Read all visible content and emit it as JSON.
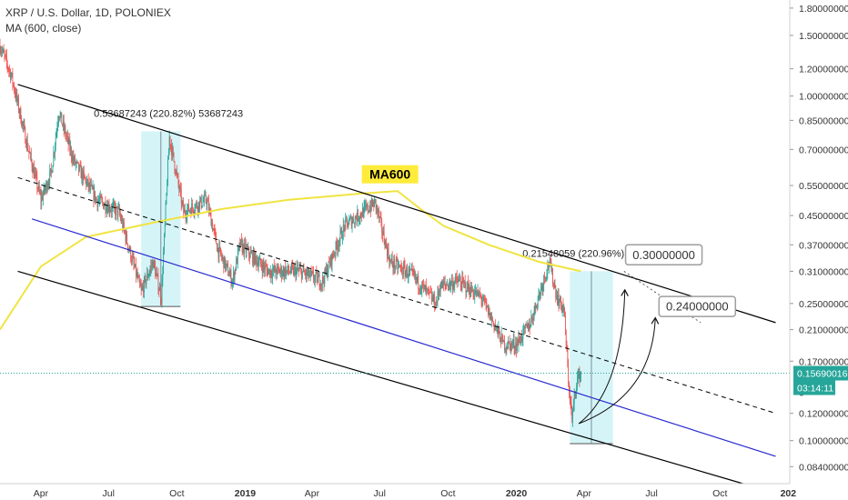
{
  "header": {
    "symbol_title": "XRP / U.S. Dollar, 1D, POLONIEX",
    "indicator_label": "MA (600, close)"
  },
  "chart_data": {
    "type": "candlestick",
    "title": "XRP / U.S. Dollar, 1D, POLONIEX",
    "yscale": "log",
    "ylim": [
      0.075,
      1.9
    ],
    "x_tick_labels": [
      "Apr",
      "Jul",
      "Oct",
      "2019",
      "Apr",
      "Jul",
      "Oct",
      "2020",
      "Apr",
      "Jul",
      "Oct",
      "202"
    ],
    "y_tick_labels": [
      "1.80000000",
      "1.50000000",
      "1.20000000",
      "1.00000000",
      "0.85000000",
      "0.70000000",
      "0.55000000",
      "0.45000000",
      "0.37000000",
      "0.31000000",
      "0.25000000",
      "0.21000000",
      "0.17000000",
      "0.12000000",
      "0.10000000",
      "0.08400000"
    ],
    "price_path": [
      {
        "x": "2018-02-05",
        "y": 1.4
      },
      {
        "x": "2018-02-20",
        "y": 1.15
      },
      {
        "x": "2018-03-15",
        "y": 0.7
      },
      {
        "x": "2018-04-01",
        "y": 0.5
      },
      {
        "x": "2018-04-15",
        "y": 0.6
      },
      {
        "x": "2018-04-25",
        "y": 0.9
      },
      {
        "x": "2018-05-15",
        "y": 0.65
      },
      {
        "x": "2018-06-15",
        "y": 0.5
      },
      {
        "x": "2018-07-15",
        "y": 0.46
      },
      {
        "x": "2018-08-14",
        "y": 0.27
      },
      {
        "x": "2018-08-30",
        "y": 0.33
      },
      {
        "x": "2018-09-10",
        "y": 0.26
      },
      {
        "x": "2018-09-21",
        "y": 0.76
      },
      {
        "x": "2018-10-10",
        "y": 0.46
      },
      {
        "x": "2018-11-10",
        "y": 0.5
      },
      {
        "x": "2018-11-25",
        "y": 0.36
      },
      {
        "x": "2018-12-15",
        "y": 0.29
      },
      {
        "x": "2018-12-25",
        "y": 0.37
      },
      {
        "x": "2019-02-01",
        "y": 0.31
      },
      {
        "x": "2019-03-15",
        "y": 0.31
      },
      {
        "x": "2019-04-15",
        "y": 0.29
      },
      {
        "x": "2019-05-15",
        "y": 0.42
      },
      {
        "x": "2019-06-25",
        "y": 0.49
      },
      {
        "x": "2019-07-15",
        "y": 0.33
      },
      {
        "x": "2019-08-15",
        "y": 0.3
      },
      {
        "x": "2019-09-15",
        "y": 0.25
      },
      {
        "x": "2019-09-20",
        "y": 0.28
      },
      {
        "x": "2019-10-15",
        "y": 0.29
      },
      {
        "x": "2019-11-15",
        "y": 0.26
      },
      {
        "x": "2019-12-15",
        "y": 0.19
      },
      {
        "x": "2020-01-01",
        "y": 0.19
      },
      {
        "x": "2020-01-20",
        "y": 0.22
      },
      {
        "x": "2020-02-14",
        "y": 0.33
      },
      {
        "x": "2020-02-25",
        "y": 0.26
      },
      {
        "x": "2020-03-05",
        "y": 0.24
      },
      {
        "x": "2020-03-12",
        "y": 0.14
      },
      {
        "x": "2020-03-16",
        "y": 0.115
      },
      {
        "x": "2020-03-22",
        "y": 0.15
      },
      {
        "x": "2020-03-28",
        "y": 0.157
      }
    ],
    "ma600": [
      {
        "x": "2018-02-05",
        "y": 0.21
      },
      {
        "x": "2018-04-01",
        "y": 0.32
      },
      {
        "x": "2018-06-01",
        "y": 0.39
      },
      {
        "x": "2018-09-01",
        "y": 0.43
      },
      {
        "x": "2018-12-01",
        "y": 0.47
      },
      {
        "x": "2019-03-01",
        "y": 0.5
      },
      {
        "x": "2019-06-01",
        "y": 0.52
      },
      {
        "x": "2019-07-25",
        "y": 0.53
      },
      {
        "x": "2019-08-25",
        "y": 0.47
      },
      {
        "x": "2019-09-25",
        "y": 0.42
      },
      {
        "x": "2019-11-25",
        "y": 0.37
      },
      {
        "x": "2020-02-01",
        "y": 0.33
      },
      {
        "x": "2020-03-28",
        "y": 0.31
      }
    ],
    "channel_upper": [
      {
        "x": "2018-03-01",
        "y": 1.08
      },
      {
        "x": "2020-12-15",
        "y": 0.22
      }
    ],
    "channel_mid": [
      {
        "x": "2018-03-01",
        "y": 0.58
      },
      {
        "x": "2020-12-15",
        "y": 0.12
      }
    ],
    "channel_blue": [
      {
        "x": "2018-03-20",
        "y": 0.44
      },
      {
        "x": "2020-12-15",
        "y": 0.09
      }
    ],
    "channel_lower": [
      {
        "x": "2018-03-01",
        "y": 0.31
      },
      {
        "x": "2020-11-01",
        "y": 0.075
      }
    ],
    "target_dotted": [
      {
        "x": "2020-05-25",
        "y": 0.31
      },
      {
        "x": "2020-09-05",
        "y": 0.22
      }
    ],
    "boxes": [
      {
        "x0": "2018-08-14",
        "x1": "2018-10-06",
        "y0": 0.245,
        "y1": 0.79,
        "label": "0.53687243 (220.82%) 53687243"
      },
      {
        "x0": "2020-03-13",
        "x1": "2020-05-10",
        "y0": 0.098,
        "y1": 0.31,
        "label": "0.21548059 (220.96%) 21548059"
      }
    ],
    "targets": [
      {
        "label": "0.30000000",
        "value": 0.3
      },
      {
        "label": "0.24000000",
        "value": 0.24
      }
    ],
    "annotations": [
      {
        "text": "MA600"
      }
    ],
    "current_price": {
      "value": 0.1569,
      "label": "0.15690016",
      "countdown": "03:14:11",
      "hidden_tick": "0"
    },
    "colors": {
      "up": "#26a69a",
      "down": "#ef5350",
      "ma": "#f0e442",
      "channel": "#000000",
      "blue_line": "#2a2ad0",
      "box_fill": "#b2ebf2",
      "price_tag": "#26a69a",
      "ma_label_bg": "#ffeb3b",
      "target_box_border": "#9e9e9e"
    }
  }
}
